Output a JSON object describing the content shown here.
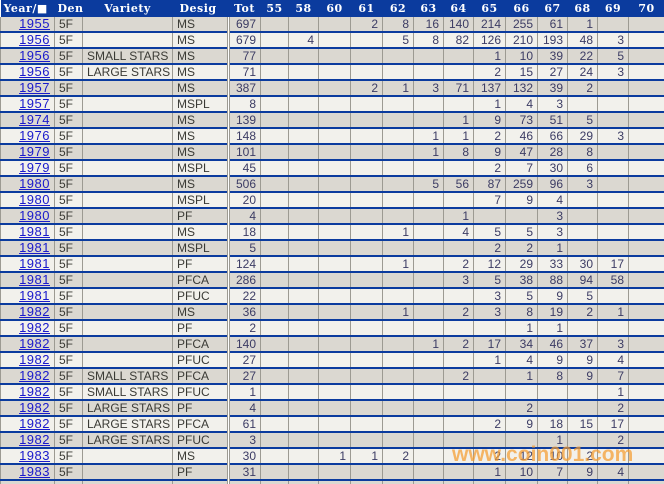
{
  "table": {
    "columns": [
      "Year/■",
      "Den",
      "Variety",
      "Desig",
      "Tot",
      "55",
      "58",
      "60",
      "61",
      "62",
      "63",
      "64",
      "65",
      "66",
      "67",
      "68",
      "69",
      "70"
    ],
    "grade_columns": [
      "55",
      "58",
      "60",
      "61",
      "62",
      "63",
      "64",
      "65",
      "66",
      "67",
      "68",
      "69",
      "70"
    ],
    "rows": [
      {
        "year": "1955",
        "den": "5F",
        "variety": "",
        "desig": "MS",
        "tot": "697",
        "grades": [
          "",
          "",
          "",
          "2",
          "8",
          "16",
          "140",
          "214",
          "255",
          "61",
          "1",
          "",
          ""
        ]
      },
      {
        "year": "1956",
        "den": "5F",
        "variety": "",
        "desig": "MS",
        "tot": "679",
        "grades": [
          "",
          "4",
          "",
          "",
          "5",
          "8",
          "82",
          "126",
          "210",
          "193",
          "48",
          "3",
          ""
        ]
      },
      {
        "year": "1956",
        "den": "5F",
        "variety": "SMALL STARS",
        "desig": "MS",
        "tot": "77",
        "grades": [
          "",
          "",
          "",
          "",
          "",
          "",
          "",
          "1",
          "10",
          "39",
          "22",
          "5",
          ""
        ]
      },
      {
        "year": "1956",
        "den": "5F",
        "variety": "LARGE STARS",
        "desig": "MS",
        "tot": "71",
        "grades": [
          "",
          "",
          "",
          "",
          "",
          "",
          "",
          "2",
          "15",
          "27",
          "24",
          "3",
          ""
        ]
      },
      {
        "year": "1957",
        "den": "5F",
        "variety": "",
        "desig": "MS",
        "tot": "387",
        "grades": [
          "",
          "",
          "",
          "2",
          "1",
          "3",
          "71",
          "137",
          "132",
          "39",
          "2",
          "",
          ""
        ]
      },
      {
        "year": "1957",
        "den": "5F",
        "variety": "",
        "desig": "MSPL",
        "tot": "8",
        "grades": [
          "",
          "",
          "",
          "",
          "",
          "",
          "",
          "1",
          "4",
          "3",
          "",
          "",
          ""
        ]
      },
      {
        "year": "1974",
        "den": "5F",
        "variety": "",
        "desig": "MS",
        "tot": "139",
        "grades": [
          "",
          "",
          "",
          "",
          "",
          "",
          "1",
          "9",
          "73",
          "51",
          "5",
          "",
          ""
        ]
      },
      {
        "year": "1976",
        "den": "5F",
        "variety": "",
        "desig": "MS",
        "tot": "148",
        "grades": [
          "",
          "",
          "",
          "",
          "",
          "1",
          "1",
          "2",
          "46",
          "66",
          "29",
          "3",
          ""
        ]
      },
      {
        "year": "1979",
        "den": "5F",
        "variety": "",
        "desig": "MS",
        "tot": "101",
        "grades": [
          "",
          "",
          "",
          "",
          "",
          "1",
          "8",
          "9",
          "47",
          "28",
          "8",
          "",
          ""
        ]
      },
      {
        "year": "1979",
        "den": "5F",
        "variety": "",
        "desig": "MSPL",
        "tot": "45",
        "grades": [
          "",
          "",
          "",
          "",
          "",
          "",
          "",
          "2",
          "7",
          "30",
          "6",
          "",
          ""
        ]
      },
      {
        "year": "1980",
        "den": "5F",
        "variety": "",
        "desig": "MS",
        "tot": "506",
        "grades": [
          "",
          "",
          "",
          "",
          "",
          "5",
          "56",
          "87",
          "259",
          "96",
          "3",
          "",
          ""
        ]
      },
      {
        "year": "1980",
        "den": "5F",
        "variety": "",
        "desig": "MSPL",
        "tot": "20",
        "grades": [
          "",
          "",
          "",
          "",
          "",
          "",
          "",
          "7",
          "9",
          "4",
          "",
          "",
          ""
        ]
      },
      {
        "year": "1980",
        "den": "5F",
        "variety": "",
        "desig": "PF",
        "tot": "4",
        "grades": [
          "",
          "",
          "",
          "",
          "",
          "",
          "1",
          "",
          "",
          "3",
          "",
          "",
          ""
        ]
      },
      {
        "year": "1981",
        "den": "5F",
        "variety": "",
        "desig": "MS",
        "tot": "18",
        "grades": [
          "",
          "",
          "",
          "",
          "1",
          "",
          "4",
          "5",
          "5",
          "3",
          "",
          "",
          ""
        ]
      },
      {
        "year": "1981",
        "den": "5F",
        "variety": "",
        "desig": "MSPL",
        "tot": "5",
        "grades": [
          "",
          "",
          "",
          "",
          "",
          "",
          "",
          "2",
          "2",
          "1",
          "",
          "",
          ""
        ]
      },
      {
        "year": "1981",
        "den": "5F",
        "variety": "",
        "desig": "PF",
        "tot": "124",
        "grades": [
          "",
          "",
          "",
          "",
          "1",
          "",
          "2",
          "12",
          "29",
          "33",
          "30",
          "17",
          ""
        ]
      },
      {
        "year": "1981",
        "den": "5F",
        "variety": "",
        "desig": "PFCA",
        "tot": "286",
        "grades": [
          "",
          "",
          "",
          "",
          "",
          "",
          "3",
          "5",
          "38",
          "88",
          "94",
          "58",
          ""
        ]
      },
      {
        "year": "1981",
        "den": "5F",
        "variety": "",
        "desig": "PFUC",
        "tot": "22",
        "grades": [
          "",
          "",
          "",
          "",
          "",
          "",
          "",
          "3",
          "5",
          "9",
          "5",
          "",
          ""
        ]
      },
      {
        "year": "1982",
        "den": "5F",
        "variety": "",
        "desig": "MS",
        "tot": "36",
        "grades": [
          "",
          "",
          "",
          "",
          "1",
          "",
          "2",
          "3",
          "8",
          "19",
          "2",
          "1",
          ""
        ]
      },
      {
        "year": "1982",
        "den": "5F",
        "variety": "",
        "desig": "PF",
        "tot": "2",
        "grades": [
          "",
          "",
          "",
          "",
          "",
          "",
          "",
          "",
          "1",
          "1",
          "",
          "",
          ""
        ]
      },
      {
        "year": "1982",
        "den": "5F",
        "variety": "",
        "desig": "PFCA",
        "tot": "140",
        "grades": [
          "",
          "",
          "",
          "",
          "",
          "1",
          "2",
          "17",
          "34",
          "46",
          "37",
          "3",
          ""
        ]
      },
      {
        "year": "1982",
        "den": "5F",
        "variety": "",
        "desig": "PFUC",
        "tot": "27",
        "grades": [
          "",
          "",
          "",
          "",
          "",
          "",
          "",
          "1",
          "4",
          "9",
          "9",
          "4",
          ""
        ]
      },
      {
        "year": "1982",
        "den": "5F",
        "variety": "SMALL STARS",
        "desig": "PFCA",
        "tot": "27",
        "grades": [
          "",
          "",
          "",
          "",
          "",
          "",
          "2",
          "",
          "1",
          "8",
          "9",
          "7",
          ""
        ]
      },
      {
        "year": "1982",
        "den": "5F",
        "variety": "SMALL STARS",
        "desig": "PFUC",
        "tot": "1",
        "grades": [
          "",
          "",
          "",
          "",
          "",
          "",
          "",
          "",
          "",
          "",
          "",
          "1",
          ""
        ]
      },
      {
        "year": "1982",
        "den": "5F",
        "variety": "LARGE STARS",
        "desig": "PF",
        "tot": "4",
        "grades": [
          "",
          "",
          "",
          "",
          "",
          "",
          "",
          "",
          "2",
          "",
          "",
          "2",
          ""
        ]
      },
      {
        "year": "1982",
        "den": "5F",
        "variety": "LARGE STARS",
        "desig": "PFCA",
        "tot": "61",
        "grades": [
          "",
          "",
          "",
          "",
          "",
          "",
          "",
          "2",
          "9",
          "18",
          "15",
          "17",
          ""
        ]
      },
      {
        "year": "1982",
        "den": "5F",
        "variety": "LARGE STARS",
        "desig": "PFUC",
        "tot": "3",
        "grades": [
          "",
          "",
          "",
          "",
          "",
          "",
          "",
          "",
          "",
          "1",
          "",
          "2",
          ""
        ]
      },
      {
        "year": "1983",
        "den": "5F",
        "variety": "",
        "desig": "MS",
        "tot": "30",
        "grades": [
          "",
          "",
          "1",
          "1",
          "2",
          "",
          "",
          "2",
          "12",
          "10",
          "2",
          "",
          ""
        ]
      },
      {
        "year": "1983",
        "den": "5F",
        "variety": "",
        "desig": "PF",
        "tot": "31",
        "grades": [
          "",
          "",
          "",
          "",
          "",
          "",
          "",
          "1",
          "10",
          "7",
          "9",
          "4",
          ""
        ]
      }
    ]
  },
  "watermark": {
    "text": "www.coin001.com"
  },
  "colors": {
    "header_bg": "#0B3B9E",
    "row_divider": "#0B3B9E",
    "row_odd_bg": "#DBD8D1",
    "row_even_bg": "#F2F1EC",
    "grid_line": "#9C9A92",
    "link_blue": "#1A1ACC",
    "number_ink": "#3C3C64",
    "watermark_orange": "#F59D31"
  }
}
